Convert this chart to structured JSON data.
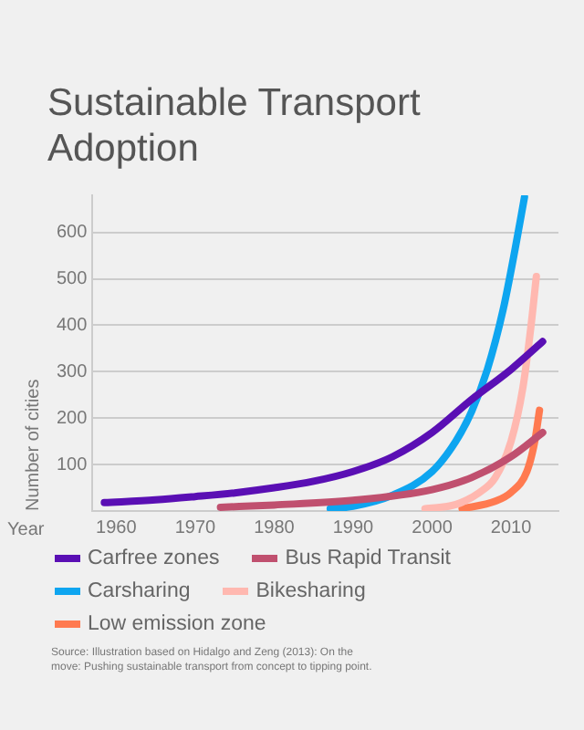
{
  "chart_data": {
    "type": "line",
    "title": "Sustainable Transport Adoption",
    "xlabel": "Year",
    "ylabel": "Number of cities",
    "xlim": [
      1957,
      2016
    ],
    "xticks": [
      1960,
      1970,
      1980,
      1990,
      2000,
      2010
    ],
    "ylim": [
      0,
      680
    ],
    "yticks": [
      100,
      200,
      300,
      400,
      500,
      600
    ],
    "grid": "y",
    "legend": "bottom",
    "marker": "none",
    "line_style": "solid",
    "series": [
      {
        "name": "Carfree zones",
        "color": "#5a0fb4",
        "x": [
          1958.5,
          1965,
          1970,
          1975,
          1980,
          1985,
          1990,
          1995,
          2000,
          2005,
          2010,
          2014
        ],
        "values": [
          18,
          24,
          31,
          39,
          50,
          64,
          85,
          117,
          169,
          240,
          305,
          365
        ]
      },
      {
        "name": "Bus Rapid Transit",
        "color": "#c0506f",
        "x": [
          1973.2,
          1980,
          1990,
          2000,
          2005,
          2010,
          2014
        ],
        "values": [
          8,
          13,
          23,
          46,
          72,
          117,
          169
        ]
      },
      {
        "name": "Carsharing",
        "color": "#0ea5f0",
        "x": [
          1987.1,
          1990,
          1995,
          2000,
          2003,
          2005,
          2007,
          2009,
          2010.5,
          2011.7
        ],
        "values": [
          5,
          10,
          34,
          85,
          150,
          214,
          305,
          434,
          563,
          676
        ]
      },
      {
        "name": "Bikesharing",
        "color": "#ffb8b0",
        "x": [
          1999.1,
          2003,
          2006,
          2008,
          2010,
          2011.5,
          2012.5,
          2013.2
        ],
        "values": [
          5,
          14,
          40,
          72,
          150,
          266,
          395,
          505
        ]
      },
      {
        "name": "Low emission zone",
        "color": "#ff7a50",
        "x": [
          2003.8,
          2008,
          2010,
          2012,
          2013,
          2013.6
        ],
        "values": [
          5,
          21,
          40,
          85,
          150,
          217
        ]
      }
    ],
    "annotations": [
      "Source: Illustration based on Hidalgo and Zeng (2013): On the move: Pushing sustainable transport from concept to tipping point."
    ]
  }
}
